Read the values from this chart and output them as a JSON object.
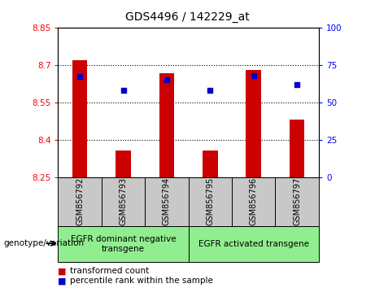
{
  "title": "GDS4496 / 142229_at",
  "samples": [
    "GSM856792",
    "GSM856793",
    "GSM856794",
    "GSM856795",
    "GSM856796",
    "GSM856797"
  ],
  "red_values": [
    8.72,
    8.355,
    8.665,
    8.355,
    8.68,
    8.48
  ],
  "blue_pct": [
    67,
    58,
    65,
    58,
    68,
    62
  ],
  "ylim_left": [
    8.25,
    8.85
  ],
  "ylim_right": [
    0,
    100
  ],
  "yticks_left": [
    8.25,
    8.4,
    8.55,
    8.7,
    8.85
  ],
  "yticks_right": [
    0,
    25,
    50,
    75,
    100
  ],
  "ytick_labels_left": [
    "8.25",
    "8.4",
    "8.55",
    "8.7",
    "8.85"
  ],
  "ytick_labels_right": [
    "0",
    "25",
    "50",
    "75",
    "100"
  ],
  "hlines": [
    8.4,
    8.55,
    8.7
  ],
  "group1_label": "EGFR dominant negative\ntransgene",
  "group2_label": "EGFR activated transgene",
  "genotype_label": "genotype/variation",
  "legend_red": "transformed count",
  "legend_blue": "percentile rank within the sample",
  "bar_color": "#CC0000",
  "dot_color": "#0000CC",
  "group_bg": "#90EE90",
  "tick_bg": "#C8C8C8",
  "bar_width": 0.35
}
